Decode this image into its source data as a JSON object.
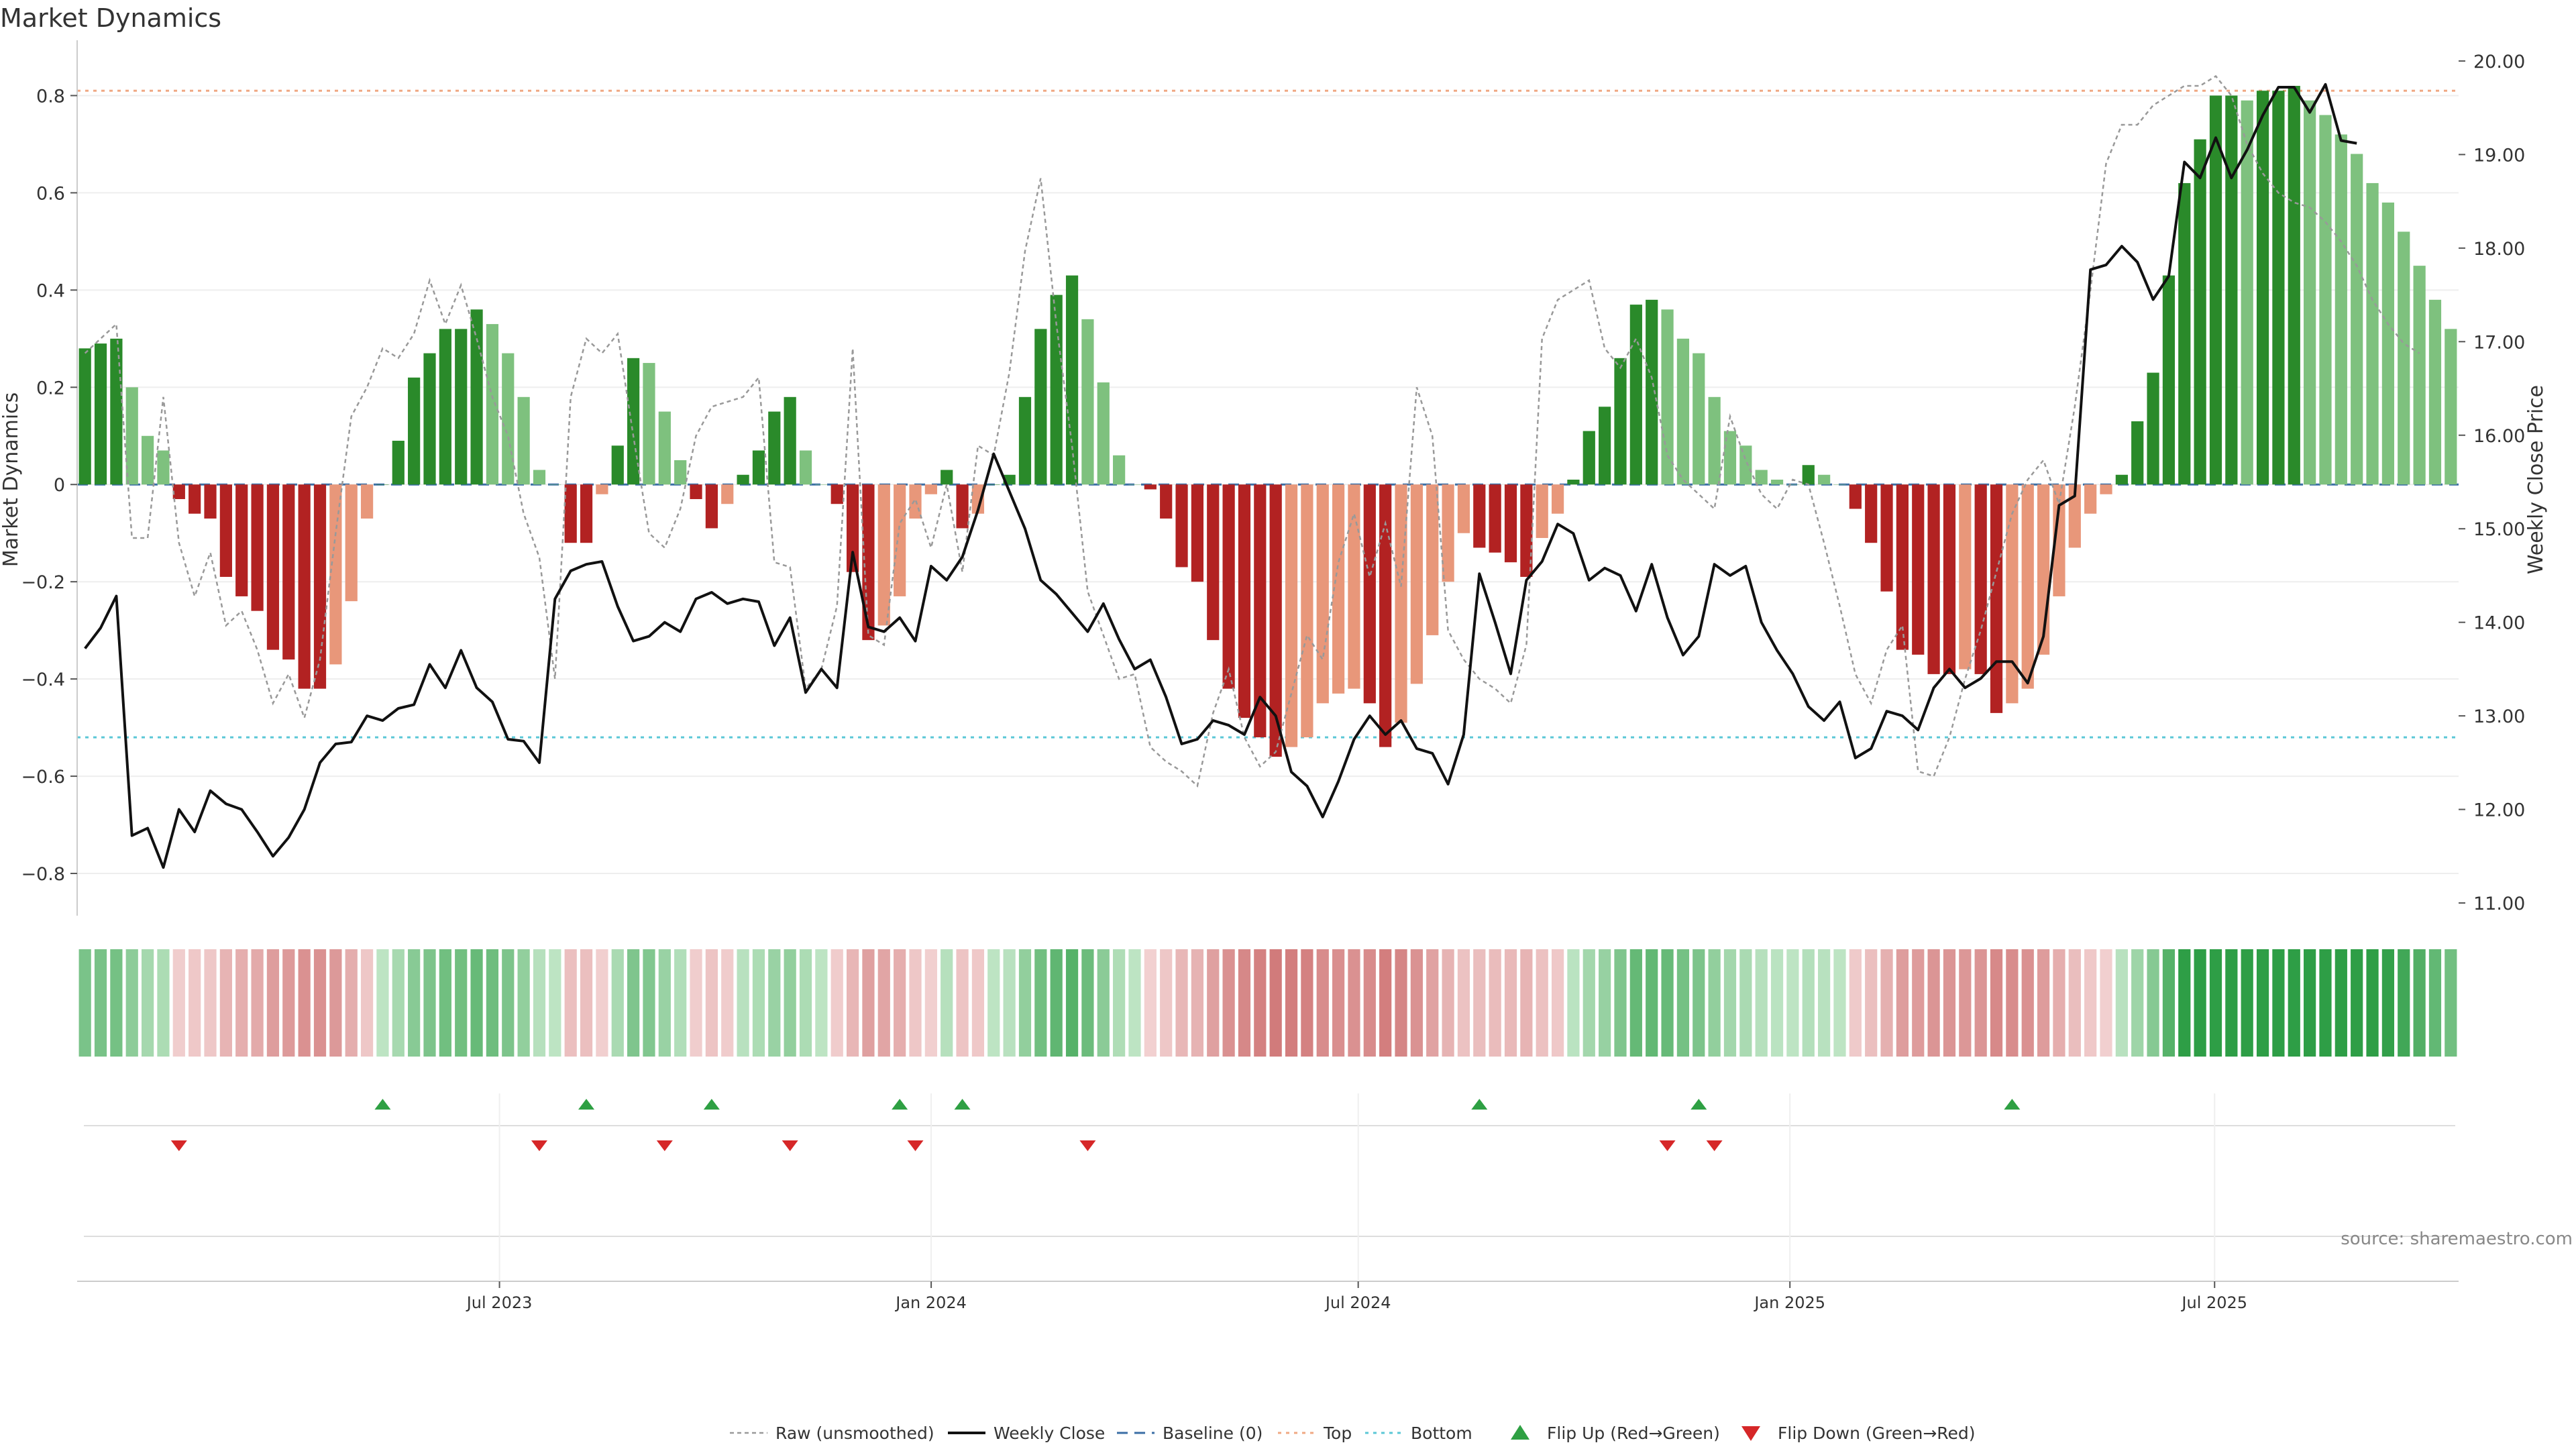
{
  "chart_data": {
    "type": "bar",
    "title": "Market Dynamics",
    "ylabel": "Market Dynamics",
    "y2label": "Weekly Close Price",
    "ylim": [
      -0.88,
      0.9
    ],
    "y2lim": [
      10.9,
      20.15
    ],
    "yticks": [
      -0.8,
      -0.6,
      -0.4,
      -0.2,
      0,
      0.2,
      0.4,
      0.6,
      0.8
    ],
    "ytick_labels": [
      "−0.8",
      "−0.6",
      "−0.4",
      "−0.2",
      "0",
      "0.2",
      "0.4",
      "0.6",
      "0.8"
    ],
    "y2ticks": [
      11,
      12,
      13,
      14,
      15,
      16,
      17,
      18,
      19,
      20
    ],
    "y2tick_labels": [
      "11.00",
      "12.00",
      "13.00",
      "14.00",
      "15.00",
      "16.00",
      "17.00",
      "18.00",
      "19.00",
      "20.00"
    ],
    "x_start": "2023-01-02",
    "x_end": "2025-10-13",
    "xticks": [
      "2023-07-01",
      "2024-01-01",
      "2024-07-01",
      "2025-01-01",
      "2025-07-01"
    ],
    "xtick_labels": [
      "Jul 2023",
      "Jan 2024",
      "Jul 2024",
      "Jan 2025",
      "Jul 2025"
    ],
    "top_level": 0.81,
    "bottom_level": -0.52,
    "baseline": 0,
    "dynamics": [
      0.28,
      0.29,
      0.3,
      0.2,
      0.1,
      0.07,
      -0.03,
      -0.06,
      -0.07,
      -0.19,
      -0.23,
      -0.26,
      -0.34,
      -0.36,
      -0.42,
      -0.42,
      -0.37,
      -0.24,
      -0.07,
      0.0,
      0.09,
      0.22,
      0.27,
      0.32,
      0.32,
      0.36,
      0.33,
      0.27,
      0.18,
      0.03,
      0.0,
      -0.12,
      -0.12,
      -0.02,
      0.08,
      0.26,
      0.25,
      0.15,
      0.05,
      -0.03,
      -0.09,
      -0.04,
      0.02,
      0.07,
      0.15,
      0.18,
      0.07,
      0.0,
      -0.04,
      -0.18,
      -0.32,
      -0.29,
      -0.23,
      -0.07,
      -0.02,
      0.03,
      -0.09,
      -0.06,
      0.0,
      0.02,
      0.18,
      0.32,
      0.39,
      0.43,
      0.34,
      0.21,
      0.06,
      0.0,
      -0.01,
      -0.07,
      -0.17,
      -0.2,
      -0.32,
      -0.42,
      -0.48,
      -0.52,
      -0.56,
      -0.54,
      -0.52,
      -0.45,
      -0.43,
      -0.42,
      -0.45,
      -0.54,
      -0.49,
      -0.41,
      -0.31,
      -0.2,
      -0.1,
      -0.13,
      -0.14,
      -0.16,
      -0.19,
      -0.11,
      -0.06,
      0.01,
      0.11,
      0.16,
      0.26,
      0.37,
      0.38,
      0.36,
      0.3,
      0.27,
      0.18,
      0.11,
      0.08,
      0.03,
      0.01,
      0.0,
      0.04,
      0.02,
      0.0,
      -0.05,
      -0.12,
      -0.22,
      -0.34,
      -0.35,
      -0.39,
      -0.39,
      -0.38,
      -0.39,
      -0.47,
      -0.45,
      -0.42,
      -0.35,
      -0.23,
      -0.13,
      -0.06,
      -0.02,
      0.02,
      0.13,
      0.23,
      0.43,
      0.62,
      0.71,
      0.8,
      0.8,
      0.79,
      0.81,
      0.81,
      0.82,
      0.79,
      0.76,
      0.72,
      0.68,
      0.62,
      0.58,
      0.52,
      0.45,
      0.38,
      0.32
    ],
    "raw": [
      0.27,
      0.3,
      0.33,
      -0.11,
      -0.11,
      0.18,
      -0.12,
      -0.23,
      -0.14,
      -0.29,
      -0.26,
      -0.34,
      -0.45,
      -0.39,
      -0.48,
      -0.36,
      -0.1,
      0.14,
      0.2,
      0.28,
      0.26,
      0.31,
      0.42,
      0.33,
      0.41,
      0.3,
      0.18,
      0.1,
      -0.06,
      -0.15,
      -0.4,
      0.18,
      0.3,
      0.27,
      0.31,
      0.1,
      -0.1,
      -0.13,
      -0.05,
      0.1,
      0.16,
      0.17,
      0.18,
      0.22,
      -0.16,
      -0.17,
      -0.42,
      -0.38,
      -0.25,
      0.28,
      -0.31,
      -0.33,
      -0.08,
      -0.03,
      -0.13,
      0.0,
      -0.18,
      0.08,
      0.06,
      0.23,
      0.48,
      0.63,
      0.33,
      0.08,
      -0.22,
      -0.31,
      -0.4,
      -0.39,
      -0.54,
      -0.57,
      -0.59,
      -0.62,
      -0.47,
      -0.38,
      -0.52,
      -0.58,
      -0.55,
      -0.43,
      -0.31,
      -0.36,
      -0.16,
      -0.06,
      -0.19,
      -0.08,
      -0.21,
      0.2,
      0.1,
      -0.3,
      -0.36,
      -0.4,
      -0.42,
      -0.45,
      -0.33,
      0.3,
      0.38,
      0.4,
      0.42,
      0.28,
      0.24,
      0.3,
      0.22,
      0.06,
      0.01,
      -0.02,
      -0.05,
      0.14,
      0.05,
      -0.02,
      -0.05,
      0.01,
      0.0,
      -0.12,
      -0.25,
      -0.39,
      -0.45,
      -0.34,
      -0.29,
      -0.59,
      -0.6,
      -0.52,
      -0.4,
      -0.3,
      -0.18,
      -0.06,
      0.01,
      0.05,
      -0.04,
      0.16,
      0.4,
      0.66,
      0.74,
      0.74,
      0.78,
      0.8,
      0.82,
      0.82,
      0.84,
      0.8,
      0.7,
      0.64,
      0.6,
      0.58,
      0.57,
      0.54,
      0.5,
      0.45,
      0.38,
      0.33,
      0.29,
      0.27
    ],
    "close": [
      13.72,
      13.94,
      14.28,
      11.72,
      11.8,
      11.38,
      12.0,
      11.76,
      12.2,
      12.06,
      12.0,
      11.76,
      11.5,
      11.7,
      12.0,
      12.5,
      12.7,
      12.72,
      13.0,
      12.95,
      13.08,
      13.12,
      13.55,
      13.3,
      13.7,
      13.3,
      13.15,
      12.75,
      12.73,
      12.5,
      14.25,
      14.55,
      14.62,
      14.65,
      14.17,
      13.8,
      13.85,
      14.0,
      13.9,
      14.25,
      14.32,
      14.2,
      14.25,
      14.22,
      13.75,
      14.05,
      13.25,
      13.5,
      13.3,
      14.75,
      13.95,
      13.9,
      14.05,
      13.8,
      14.6,
      14.45,
      14.7,
      15.2,
      15.8,
      15.4,
      15.0,
      14.45,
      14.3,
      14.1,
      13.9,
      14.2,
      13.82,
      13.5,
      13.6,
      13.2,
      12.7,
      12.75,
      12.95,
      12.9,
      12.8,
      13.2,
      13.0,
      12.4,
      12.25,
      11.92,
      12.3,
      12.75,
      13.0,
      12.8,
      12.95,
      12.65,
      12.6,
      12.27,
      12.8,
      14.52,
      14.0,
      13.45,
      14.45,
      14.65,
      15.05,
      14.95,
      14.45,
      14.58,
      14.5,
      14.12,
      14.62,
      14.05,
      13.65,
      13.85,
      14.62,
      14.5,
      14.6,
      14.0,
      13.7,
      13.45,
      13.1,
      12.95,
      13.15,
      12.55,
      12.65,
      13.05,
      13.0,
      12.85,
      13.3,
      13.5,
      13.3,
      13.4,
      13.58,
      13.58,
      13.35,
      13.85,
      15.25,
      15.35,
      17.77,
      17.82,
      18.02,
      17.85,
      17.45,
      17.7,
      18.92,
      18.75,
      19.18,
      18.75,
      19.05,
      19.42,
      19.72,
      19.72,
      19.45,
      19.75,
      19.15,
      19.12
    ],
    "flip_up": [
      19,
      32,
      40,
      52,
      56,
      89,
      103,
      123
    ],
    "flip_down": [
      6,
      29,
      37,
      45,
      53,
      64,
      101,
      104
    ],
    "source": "source: sharemaestro.com",
    "legend": {
      "placement": "bottom-center",
      "entries": [
        "Raw (unsmoothed)",
        "Weekly Close",
        "Baseline (0)",
        "Top",
        "Bottom",
        "Flip Up (Red→Green)",
        "Flip Down (Green→Red)"
      ]
    },
    "colors": {
      "pos_strong": "#2a8a2a",
      "pos_weak": "#7ec17e",
      "neg_strong": "#b22222",
      "neg_weak": "#e8977a",
      "close": "#111111",
      "raw": "#999999",
      "baseline": "#3a6ea5",
      "top": "#f0a883",
      "bottom": "#5bc7d6",
      "flip_up": "#2ea043",
      "flip_down": "#d62728"
    }
  }
}
